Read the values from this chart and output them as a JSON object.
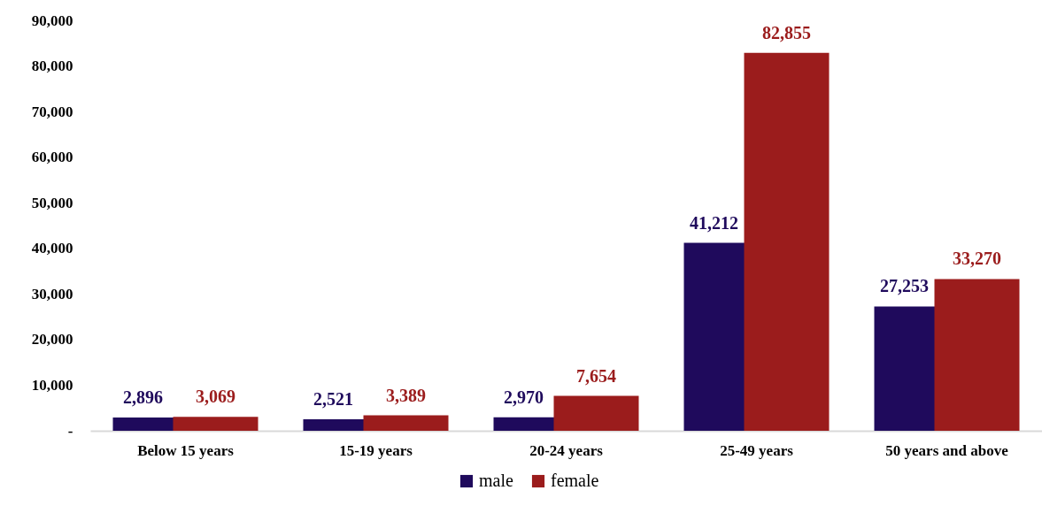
{
  "chart_data": {
    "type": "bar",
    "categories": [
      "Below 15 years",
      "15-19 years",
      "20-24 years",
      "25-49 years",
      "50 years and above"
    ],
    "series": [
      {
        "name": "male",
        "color": "#1f0a5c",
        "values": [
          2896,
          2521,
          2970,
          41212,
          27253
        ],
        "value_labels": [
          "2,896",
          "2,521",
          "2,970",
          "41,212",
          "27,253"
        ]
      },
      {
        "name": "female",
        "color": "#9b1c1c",
        "values": [
          3069,
          3389,
          7654,
          82855,
          33270
        ],
        "value_labels": [
          "3,069",
          "3,389",
          "7,654",
          "82,855",
          "33,270"
        ]
      }
    ],
    "ylim": [
      0,
      90000
    ],
    "yticks": [
      {
        "value": 0,
        "label": "-"
      },
      {
        "value": 10000,
        "label": "10,000"
      },
      {
        "value": 20000,
        "label": "20,000"
      },
      {
        "value": 30000,
        "label": "30,000"
      },
      {
        "value": 40000,
        "label": "40,000"
      },
      {
        "value": 50000,
        "label": "50,000"
      },
      {
        "value": 60000,
        "label": "60,000"
      },
      {
        "value": 70000,
        "label": "70,000"
      },
      {
        "value": 80000,
        "label": "80,000"
      },
      {
        "value": 90000,
        "label": "90,000"
      }
    ],
    "grid": false,
    "legend": "bottom"
  }
}
